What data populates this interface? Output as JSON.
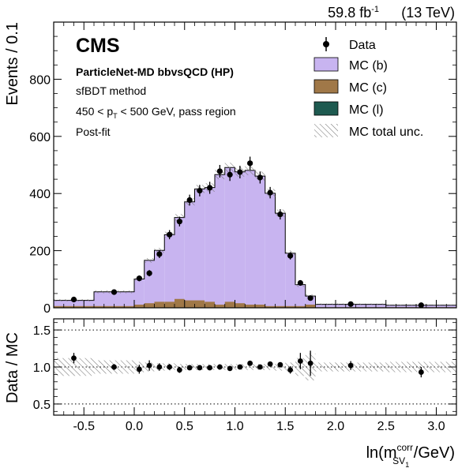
{
  "header": {
    "lumi": "59.8 fb",
    "lumi_exp": "-1",
    "energy": "(13 TeV)"
  },
  "annotations": {
    "experiment": "CMS",
    "tagger": "ParticleNet-MD bbvsQCD (HP)",
    "method": "sfBDT method",
    "pt_prefix": "450 < p",
    "pt_sub": "T",
    "pt_suffix": " < 500 GeV, pass region",
    "fit": "Post-fit"
  },
  "legend": {
    "data": "Data",
    "mc_b": "MC (b)",
    "mc_c": "MC (c)",
    "mc_l": "MC (l)",
    "unc": "MC total unc."
  },
  "axes": {
    "upper_ylabel": "Events / 0.1",
    "lower_ylabel": "Data / MC",
    "xlabel_prefix": "ln(m",
    "xlabel_sup": "corr",
    "xlabel_sub": "SV",
    "xlabel_subsub": "1",
    "xlabel_suffix": " /GeV)"
  },
  "colors": {
    "mc_b": "#c8b4f0",
    "mc_c": "#a07848",
    "mc_l": "#1e5a50"
  },
  "chart_data": [
    {
      "type": "bar",
      "stacked": true,
      "x_range": [
        -0.8,
        3.2
      ],
      "ylim": [
        0,
        1000
      ],
      "yticks": [
        0,
        200,
        400,
        600,
        800
      ],
      "legend_position": "top-right",
      "bin_edges": [
        -0.8,
        -0.4,
        0.0,
        0.1,
        0.2,
        0.3,
        0.4,
        0.5,
        0.6,
        0.7,
        0.8,
        0.9,
        1.0,
        1.1,
        1.2,
        1.3,
        1.4,
        1.5,
        1.6,
        1.7,
        1.8,
        2.5,
        3.2
      ],
      "series": [
        {
          "name": "MC (b)",
          "values": [
            20,
            50,
            90,
            150,
            180,
            235,
            285,
            345,
            390,
            400,
            455,
            470,
            460,
            470,
            450,
            395,
            325,
            185,
            75,
            30,
            10,
            7
          ]
        },
        {
          "name": "MC (c)",
          "values": [
            5,
            5,
            10,
            15,
            20,
            20,
            30,
            25,
            25,
            20,
            10,
            20,
            15,
            10,
            10,
            5,
            5,
            5,
            5,
            10,
            1,
            1
          ]
        },
        {
          "name": "MC (l)",
          "values": [
            1,
            1,
            1,
            1,
            1,
            1,
            1,
            1,
            1,
            1,
            1,
            1,
            1,
            1,
            1,
            1,
            1,
            1,
            1,
            1,
            1,
            1
          ]
        }
      ],
      "mc_total_uncertainty": [
        4,
        5,
        6,
        8,
        9,
        10,
        12,
        13,
        14,
        15,
        16,
        17,
        17,
        17,
        16,
        15,
        13,
        10,
        8,
        6,
        3,
        2
      ],
      "data": {
        "name": "Data",
        "x": [
          -0.6,
          -0.2,
          0.05,
          0.15,
          0.25,
          0.35,
          0.45,
          0.55,
          0.65,
          0.75,
          0.85,
          0.95,
          1.05,
          1.15,
          1.25,
          1.35,
          1.45,
          1.55,
          1.65,
          1.75,
          2.15,
          2.85
        ],
        "y": [
          29,
          55,
          103,
          121,
          188,
          256,
          302,
          377,
          410,
          420,
          478,
          466,
          475,
          506,
          456,
          403,
          327,
          182,
          87,
          34,
          13,
          9
        ],
        "yerr": [
          6,
          8,
          10,
          11,
          14,
          16,
          17,
          19,
          20,
          21,
          22,
          22,
          22,
          23,
          21,
          20,
          18,
          13,
          9,
          6,
          4,
          3
        ]
      }
    },
    {
      "type": "scatter",
      "x_range": [
        -0.8,
        3.2
      ],
      "ylim": [
        0.35,
        1.65
      ],
      "yticks": [
        0.5,
        1.0,
        1.5
      ],
      "xticks": [
        -0.5,
        0.0,
        0.5,
        1.0,
        1.5,
        2.0,
        2.5,
        3.0
      ],
      "reference_lines": [
        0.5,
        1.0,
        1.5
      ],
      "unc_band": [
        0.12,
        0.09,
        0.07,
        0.06,
        0.05,
        0.05,
        0.04,
        0.04,
        0.04,
        0.04,
        0.04,
        0.04,
        0.04,
        0.04,
        0.04,
        0.04,
        0.05,
        0.06,
        0.12,
        0.18,
        0.06,
        0.07
      ],
      "x": [
        -0.6,
        -0.2,
        0.05,
        0.15,
        0.25,
        0.35,
        0.45,
        0.55,
        0.65,
        0.75,
        0.85,
        0.95,
        1.05,
        1.15,
        1.25,
        1.35,
        1.45,
        1.55,
        1.65,
        1.75,
        2.15,
        2.85
      ],
      "y": [
        1.12,
        1.0,
        0.97,
        1.02,
        1.0,
        1.0,
        0.96,
        0.99,
        0.99,
        0.99,
        1.0,
        0.98,
        1.0,
        1.05,
        1.0,
        1.04,
        1.03,
        0.96,
        1.08,
        1.05,
        1.02,
        0.93
      ],
      "yerr": [
        0.07,
        0.04,
        0.06,
        0.07,
        0.05,
        0.04,
        0.04,
        0.03,
        0.03,
        0.03,
        0.03,
        0.03,
        0.03,
        0.03,
        0.03,
        0.03,
        0.03,
        0.05,
        0.11,
        0.17,
        0.06,
        0.07
      ]
    }
  ]
}
